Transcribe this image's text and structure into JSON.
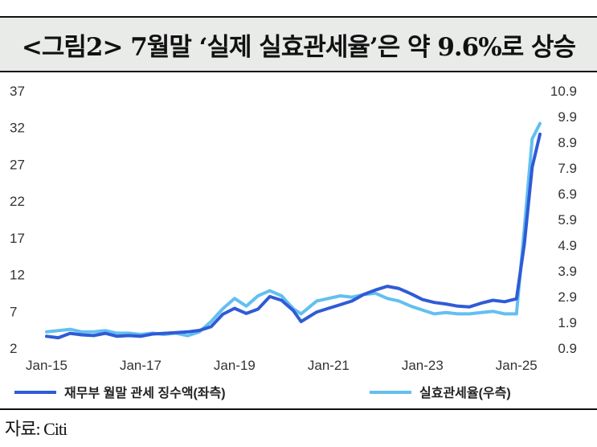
{
  "title": "<그림2> 7월말 ‘실제 실효관세율’은 약 9.6%로 상승",
  "source": "자료: Citi",
  "colors": {
    "series_left": "#2f5bd6",
    "series_right": "#63bff0"
  },
  "chart_data": {
    "type": "line",
    "x_tick_labels": [
      "Jan-15",
      "Jan-17",
      "Jan-19",
      "Jan-21",
      "Jan-23",
      "Jan-25"
    ],
    "x_range": [
      "2015-01",
      "2025-07"
    ],
    "y_left_ticks": [
      "2",
      "7",
      "12",
      "17",
      "22",
      "27",
      "32",
      "37"
    ],
    "y_left_range": [
      2,
      37
    ],
    "y_right_ticks": [
      "0.9",
      "1.9",
      "2.9",
      "3.9",
      "4.9",
      "5.9",
      "6.9",
      "7.9",
      "8.9",
      "9.9",
      "10.9"
    ],
    "y_right_range": [
      0.9,
      10.9
    ],
    "legend_position": "bottom",
    "grid": false,
    "series": [
      {
        "name": "재무부 월말 관세 징수액(좌측)",
        "axis": "left",
        "color": "#2f5bd6",
        "points": [
          [
            "2015-01",
            3.5
          ],
          [
            "2015-04",
            3.3
          ],
          [
            "2015-07",
            3.9
          ],
          [
            "2015-10",
            3.7
          ],
          [
            "2016-01",
            3.6
          ],
          [
            "2016-04",
            3.9
          ],
          [
            "2016-07",
            3.5
          ],
          [
            "2016-10",
            3.6
          ],
          [
            "2017-01",
            3.5
          ],
          [
            "2017-04",
            3.8
          ],
          [
            "2017-07",
            3.9
          ],
          [
            "2017-10",
            4.0
          ],
          [
            "2018-01",
            4.1
          ],
          [
            "2018-04",
            4.3
          ],
          [
            "2018-07",
            4.8
          ],
          [
            "2018-10",
            6.5
          ],
          [
            "2019-01",
            7.3
          ],
          [
            "2019-04",
            6.6
          ],
          [
            "2019-07",
            7.2
          ],
          [
            "2019-10",
            8.9
          ],
          [
            "2020-01",
            8.4
          ],
          [
            "2020-04",
            7.0
          ],
          [
            "2020-06",
            5.5
          ],
          [
            "2020-10",
            6.8
          ],
          [
            "2021-01",
            7.3
          ],
          [
            "2021-04",
            7.8
          ],
          [
            "2021-07",
            8.3
          ],
          [
            "2021-10",
            9.2
          ],
          [
            "2022-01",
            9.8
          ],
          [
            "2022-04",
            10.3
          ],
          [
            "2022-07",
            10.0
          ],
          [
            "2022-10",
            9.3
          ],
          [
            "2023-01",
            8.5
          ],
          [
            "2023-04",
            8.1
          ],
          [
            "2023-07",
            7.9
          ],
          [
            "2023-10",
            7.6
          ],
          [
            "2024-01",
            7.5
          ],
          [
            "2024-04",
            8.0
          ],
          [
            "2024-07",
            8.4
          ],
          [
            "2024-10",
            8.2
          ],
          [
            "2025-01",
            8.6
          ],
          [
            "2025-03",
            16.0
          ],
          [
            "2025-05",
            26.5
          ],
          [
            "2025-07",
            31.0
          ]
        ]
      },
      {
        "name": "실효관세율(우측)",
        "axis": "right",
        "color": "#63bff0",
        "points": [
          [
            "2015-01",
            1.5
          ],
          [
            "2015-04",
            1.55
          ],
          [
            "2015-07",
            1.6
          ],
          [
            "2015-10",
            1.5
          ],
          [
            "2016-01",
            1.5
          ],
          [
            "2016-04",
            1.55
          ],
          [
            "2016-07",
            1.45
          ],
          [
            "2016-10",
            1.45
          ],
          [
            "2017-01",
            1.4
          ],
          [
            "2017-04",
            1.45
          ],
          [
            "2017-07",
            1.4
          ],
          [
            "2017-10",
            1.45
          ],
          [
            "2018-01",
            1.35
          ],
          [
            "2018-04",
            1.5
          ],
          [
            "2018-07",
            1.9
          ],
          [
            "2018-10",
            2.4
          ],
          [
            "2019-01",
            2.8
          ],
          [
            "2019-04",
            2.5
          ],
          [
            "2019-07",
            2.9
          ],
          [
            "2019-10",
            3.1
          ],
          [
            "2020-01",
            2.9
          ],
          [
            "2020-04",
            2.4
          ],
          [
            "2020-06",
            2.2
          ],
          [
            "2020-10",
            2.7
          ],
          [
            "2021-01",
            2.8
          ],
          [
            "2021-04",
            2.9
          ],
          [
            "2021-07",
            2.85
          ],
          [
            "2021-10",
            2.95
          ],
          [
            "2022-01",
            3.0
          ],
          [
            "2022-04",
            2.8
          ],
          [
            "2022-07",
            2.7
          ],
          [
            "2022-10",
            2.5
          ],
          [
            "2023-01",
            2.35
          ],
          [
            "2023-04",
            2.2
          ],
          [
            "2023-07",
            2.25
          ],
          [
            "2023-10",
            2.2
          ],
          [
            "2024-01",
            2.2
          ],
          [
            "2024-04",
            2.25
          ],
          [
            "2024-07",
            2.3
          ],
          [
            "2024-10",
            2.2
          ],
          [
            "2025-01",
            2.2
          ],
          [
            "2025-03",
            5.5
          ],
          [
            "2025-05",
            9.0
          ],
          [
            "2025-07",
            9.6
          ]
        ]
      }
    ]
  }
}
